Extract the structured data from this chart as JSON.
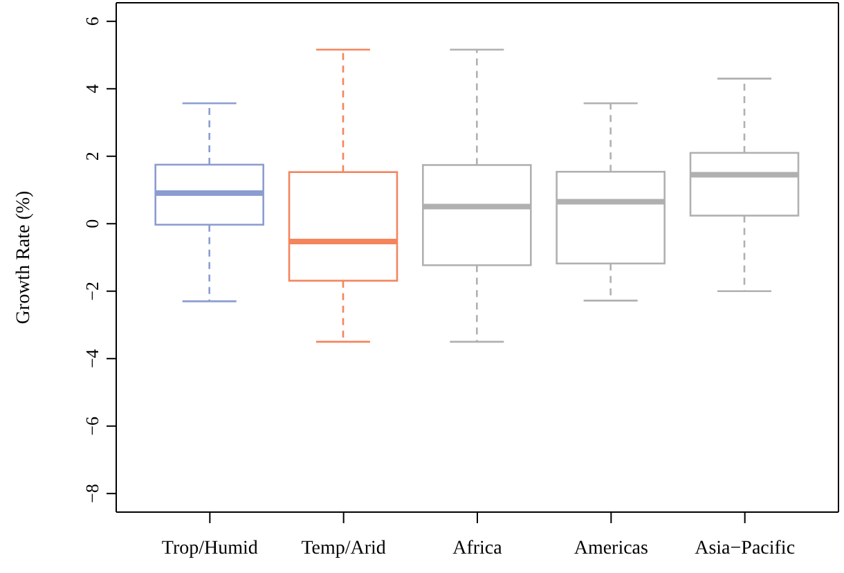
{
  "chart_data": {
    "type": "box",
    "ylabel": "Growth Rate (%)",
    "categories": [
      "Trop/Humid",
      "Temp/Arid",
      "Africa",
      "Americas",
      "Asia−Pacific"
    ],
    "colors": [
      "#8b9dd0",
      "#f5845c",
      "#b0b0b0",
      "#b0b0b0",
      "#b0b0b0"
    ],
    "boxes": [
      {
        "low": -2.3,
        "q1": -0.03,
        "median": 0.91,
        "q3": 1.75,
        "high": 3.57
      },
      {
        "low": -3.5,
        "q1": -1.69,
        "median": -0.53,
        "q3": 1.53,
        "high": 5.16
      },
      {
        "low": -3.5,
        "q1": -1.23,
        "median": 0.51,
        "q3": 1.74,
        "high": 5.16
      },
      {
        "low": -2.28,
        "q1": -1.18,
        "median": 0.65,
        "q3": 1.54,
        "high": 3.57
      },
      {
        "low": -2.0,
        "q1": 0.24,
        "median": 1.45,
        "q3": 2.1,
        "high": 4.3
      }
    ],
    "line_style": "dashed",
    "ylim": [
      -8.55,
      6.55
    ],
    "yticks": [
      {
        "value": -8,
        "label": "−8"
      },
      {
        "value": -6,
        "label": "−6"
      },
      {
        "value": -4,
        "label": "−4"
      },
      {
        "value": -2,
        "label": "−2"
      },
      0,
      2,
      4,
      6
    ]
  }
}
